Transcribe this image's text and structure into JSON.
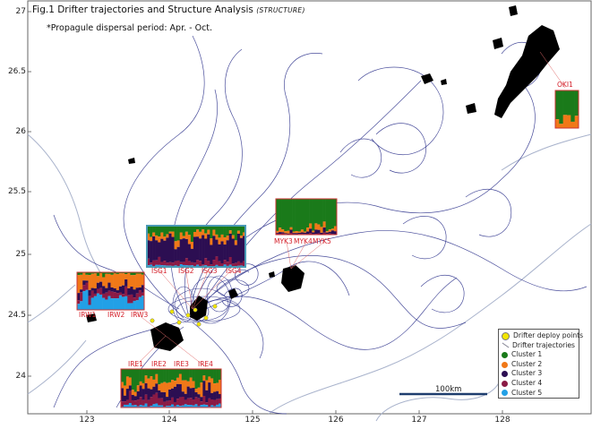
{
  "figure": {
    "title": "Fig.1 Drifter trajectories and Structure Analysis",
    "title_tag": "(STRUCTURE)",
    "subtitle": "*Propagule dispersal period: Apr. - Oct."
  },
  "axes": {
    "x_ticks": [
      "123",
      "124",
      "125",
      "126",
      "127",
      "128"
    ],
    "y_ticks": [
      "27",
      "26.5",
      "26",
      "25.5",
      "25",
      "24.5",
      "24"
    ]
  },
  "colors": {
    "cluster1": "#1a7a1a",
    "cluster2": "#f07818",
    "cluster3": "#2c0e52",
    "cluster4": "#8a1a45",
    "cluster5": "#22a0e6",
    "trajectory": "#2a2f8a",
    "coast": "#a9b3cc",
    "land": "#000000",
    "deploy_point": "#f2e600",
    "site_label": "#d4202a"
  },
  "sites": {
    "oki1": "OKI1",
    "myk3": "MYK3",
    "myk4": "MYK4",
    "myk5": "MYK5",
    "isg1": "ISG1",
    "isg2": "ISG2",
    "isg3": "ISG3",
    "isg4": "ISG4",
    "irw1": "IRW1",
    "irw2": "IRW2",
    "irw3": "IRW3",
    "ire1": "IRE1",
    "ire2": "IRE2",
    "ire3": "IRE3",
    "ire4": "IRE4"
  },
  "legend": {
    "deploy": "Drifter deploy points",
    "trajectories": "Drifter trajectories",
    "c1": "Cluster 1",
    "c2": "Cluster 2",
    "c3": "Cluster 3",
    "c4": "Cluster 4",
    "c5": "Cluster 5"
  },
  "scale_bar": {
    "label": "100km"
  },
  "structure_groups": {
    "oki1": [
      0.78,
      0.22,
      0,
      0,
      0
    ],
    "myk": [
      0.85,
      0.08,
      0.05,
      0.02,
      0
    ],
    "isg": [
      0.2,
      0.12,
      0.55,
      0.1,
      0.03
    ],
    "irw": [
      0.05,
      0.3,
      0.15,
      0.15,
      0.35
    ],
    "ire": [
      0.3,
      0.25,
      0.25,
      0.15,
      0.05
    ]
  }
}
